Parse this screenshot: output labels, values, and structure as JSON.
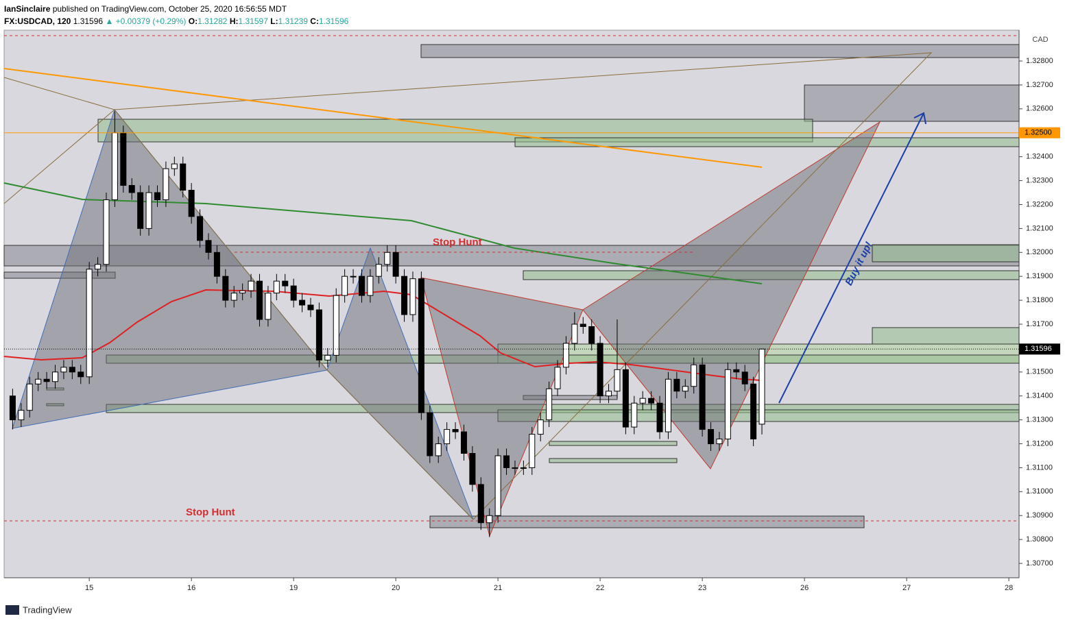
{
  "header": {
    "author": "IanSinclaire",
    "published": " published on TradingView.com, October 25, 2020 16:56:55 MDT",
    "symbol": "FX:USDCAD, 120",
    "change": "▲ +0.00379 (+0.29%)",
    "open_label": "O:",
    "high_label": "H:",
    "low_label": "L:",
    "close_label": "C:"
  },
  "chart_data": {
    "type": "candlestick",
    "currency": "CAD",
    "open": [
      1.314,
      1.313,
      1.3134,
      1.3145,
      1.3147,
      1.3146,
      1.315,
      1.3152,
      1.315,
      1.3148,
      1.3193,
      1.3195,
      1.3222,
      1.325,
      1.3228,
      1.3225,
      1.321,
      1.3225,
      1.3222,
      1.3235,
      1.3237,
      1.3226,
      1.3215,
      1.3205,
      1.32,
      1.319,
      1.318,
      1.3183,
      1.3184,
      1.3188,
      1.3172,
      1.3183,
      1.3188,
      1.3186,
      1.318,
      1.3178,
      1.3176,
      1.3155,
      1.3157,
      1.3182,
      1.319,
      1.319,
      1.3182,
      1.319,
      1.3195,
      1.32,
      1.319,
      1.3174,
      1.3189,
      1.3133,
      1.3115,
      1.312,
      1.3126,
      1.3125,
      1.3116,
      1.3103,
      1.3087,
      1.309,
      1.3115,
      1.311,
      1.311,
      1.311,
      1.3124,
      1.313,
      1.3143,
      1.3152,
      1.3162,
      1.317,
      1.3169,
      1.3162,
      1.314,
      1.3142,
      1.3151,
      1.3127,
      1.3137,
      1.3139,
      1.3137,
      1.3125,
      1.3147,
      1.3142,
      1.3144,
      1.3153,
      1.3126,
      1.312,
      1.3122,
      1.3151,
      1.315,
      1.3145,
      1.31282
    ],
    "high": [
      1.3143,
      1.3137,
      1.3148,
      1.315,
      1.315,
      1.3153,
      1.3155,
      1.3155,
      1.3153,
      1.3196,
      1.3198,
      1.3225,
      1.3259,
      1.3253,
      1.3231,
      1.3228,
      1.3228,
      1.3228,
      1.3238,
      1.324,
      1.324,
      1.3229,
      1.3218,
      1.3208,
      1.3203,
      1.3193,
      1.3186,
      1.3187,
      1.3191,
      1.3191,
      1.3186,
      1.3191,
      1.3191,
      1.3189,
      1.3183,
      1.3181,
      1.3179,
      1.316,
      1.3185,
      1.3193,
      1.3193,
      1.3193,
      1.3193,
      1.3198,
      1.3203,
      1.3203,
      1.3193,
      1.3192,
      1.3192,
      1.3136,
      1.3123,
      1.3129,
      1.3129,
      1.3128,
      1.3119,
      1.3106,
      1.3093,
      1.3118,
      1.3118,
      1.3113,
      1.3113,
      1.3127,
      1.3133,
      1.3146,
      1.3155,
      1.3165,
      1.3175,
      1.3173,
      1.3172,
      1.3165,
      1.3145,
      1.3172,
      1.3154,
      1.314,
      1.3142,
      1.3142,
      1.314,
      1.315,
      1.315,
      1.3147,
      1.3156,
      1.3156,
      1.3129,
      1.3125,
      1.3154,
      1.3154,
      1.3153,
      1.3148,
      1.31597
    ],
    "low": [
      1.3126,
      1.3127,
      1.3131,
      1.3142,
      1.3143,
      1.3143,
      1.3147,
      1.3147,
      1.3145,
      1.3145,
      1.319,
      1.3192,
      1.3219,
      1.3225,
      1.3222,
      1.3207,
      1.3207,
      1.3219,
      1.3219,
      1.3232,
      1.3223,
      1.3212,
      1.3202,
      1.3197,
      1.3187,
      1.3177,
      1.3177,
      1.318,
      1.3181,
      1.3169,
      1.3169,
      1.318,
      1.3183,
      1.3177,
      1.3175,
      1.3173,
      1.3152,
      1.3152,
      1.3154,
      1.3179,
      1.3187,
      1.3179,
      1.3179,
      1.3187,
      1.3192,
      1.3187,
      1.3171,
      1.3171,
      1.313,
      1.3112,
      1.3112,
      1.3117,
      1.3122,
      1.3113,
      1.31,
      1.3084,
      1.3081,
      1.3087,
      1.3107,
      1.3107,
      1.3107,
      1.3107,
      1.3121,
      1.3127,
      1.314,
      1.3149,
      1.3159,
      1.3166,
      1.3159,
      1.3137,
      1.3137,
      1.3139,
      1.3124,
      1.3124,
      1.3134,
      1.3134,
      1.3122,
      1.3122,
      1.3139,
      1.3139,
      1.3141,
      1.3123,
      1.3117,
      1.3117,
      1.3119,
      1.3147,
      1.3142,
      1.3119,
      1.31239
    ],
    "close": [
      1.313,
      1.3134,
      1.3145,
      1.3147,
      1.3146,
      1.315,
      1.3152,
      1.315,
      1.3148,
      1.3193,
      1.3195,
      1.3222,
      1.325,
      1.3228,
      1.3225,
      1.321,
      1.3225,
      1.3222,
      1.3235,
      1.3237,
      1.3226,
      1.3215,
      1.3205,
      1.32,
      1.319,
      1.318,
      1.3183,
      1.3184,
      1.3188,
      1.3172,
      1.3183,
      1.3188,
      1.3186,
      1.318,
      1.3178,
      1.3176,
      1.3155,
      1.3157,
      1.3182,
      1.319,
      1.319,
      1.3182,
      1.319,
      1.3195,
      1.32,
      1.319,
      1.3174,
      1.3189,
      1.3133,
      1.3115,
      1.312,
      1.3126,
      1.3125,
      1.3116,
      1.3103,
      1.3087,
      1.309,
      1.3115,
      1.311,
      1.311,
      1.311,
      1.3124,
      1.313,
      1.3143,
      1.3152,
      1.3162,
      1.317,
      1.3169,
      1.3162,
      1.314,
      1.3142,
      1.3151,
      1.3127,
      1.3137,
      1.3139,
      1.3137,
      1.3125,
      1.3147,
      1.3142,
      1.3144,
      1.3153,
      1.3126,
      1.312,
      1.3122,
      1.3151,
      1.315,
      1.3145,
      1.3122,
      1.31596
    ],
    "up_color": "#ffffff",
    "down_color": "#000000",
    "ylim": [
      1.3064,
      1.32929
    ],
    "yticks": [
      {
        "value": 1.307,
        "label": "1.30700"
      },
      {
        "value": 1.308,
        "label": "1.30800"
      },
      {
        "value": 1.309,
        "label": "1.30900"
      },
      {
        "value": 1.31,
        "label": "1.31000"
      },
      {
        "value": 1.311,
        "label": "1.31100"
      },
      {
        "value": 1.312,
        "label": "1.31200"
      },
      {
        "value": 1.313,
        "label": "1.31300"
      },
      {
        "value": 1.314,
        "label": "1.31400"
      },
      {
        "value": 1.315,
        "label": "1.31500"
      },
      {
        "value": 1.317,
        "label": "1.31700"
      },
      {
        "value": 1.318,
        "label": "1.31800"
      },
      {
        "value": 1.319,
        "label": "1.31900"
      },
      {
        "value": 1.32,
        "label": "1.32000"
      },
      {
        "value": 1.321,
        "label": "1.32100"
      },
      {
        "value": 1.322,
        "label": "1.32200"
      },
      {
        "value": 1.323,
        "label": "1.32300"
      },
      {
        "value": 1.324,
        "label": "1.32400"
      },
      {
        "value": 1.326,
        "label": "1.32600"
      },
      {
        "value": 1.327,
        "label": "1.32700"
      },
      {
        "value": 1.328,
        "label": "1.32800"
      }
    ],
    "xlim": [
      -1,
      118.2
    ],
    "xticks": [
      {
        "value": 9,
        "label": "15"
      },
      {
        "value": 21,
        "label": "16"
      },
      {
        "value": 33,
        "label": "19"
      },
      {
        "value": 45,
        "label": "20"
      },
      {
        "value": 57,
        "label": "21"
      },
      {
        "value": 69,
        "label": "22"
      },
      {
        "value": 81,
        "label": "23"
      },
      {
        "value": 93,
        "label": "26"
      },
      {
        "value": 105,
        "label": "27"
      },
      {
        "value": 117,
        "label": "28"
      }
    ],
    "price_lines": [
      {
        "value": 1.325,
        "label": "1.32500",
        "color": "#ff9800"
      }
    ],
    "annotations": [
      "Stop Hunt",
      "Stop Hunt",
      "Buy it up!"
    ]
  },
  "footer": {
    "brand": "TradingView"
  }
}
